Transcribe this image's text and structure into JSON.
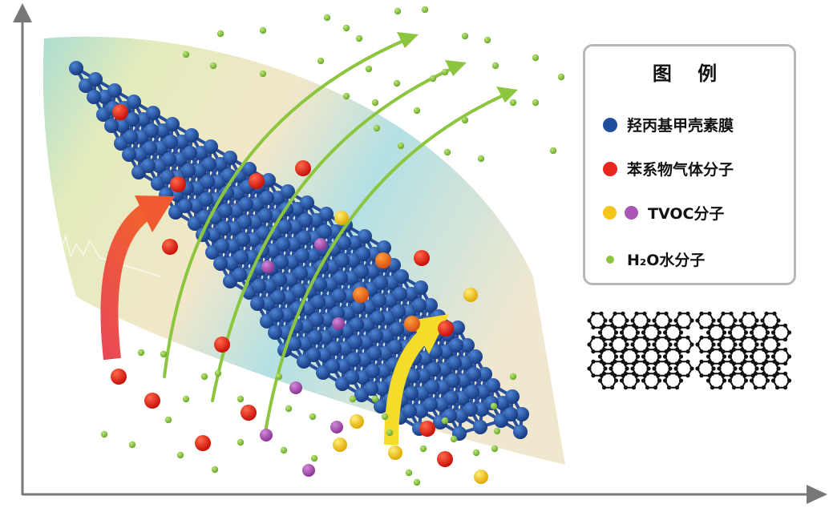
{
  "legend": {
    "title": "图 例",
    "items": [
      {
        "label": "羟丙基甲壳素膜",
        "colors": [
          "#1f4e9e"
        ]
      },
      {
        "label": "苯系物气体分子",
        "colors": [
          "#e8281e"
        ]
      },
      {
        "label": "TVOC分子",
        "colors": [
          "#f5c518",
          "#a855b5"
        ]
      },
      {
        "label": "H₂O水分子",
        "colors": [
          "#8cc63f"
        ]
      }
    ]
  },
  "colors": {
    "membrane_atom": "#1f4e9e",
    "benzene_molecule": "#e8281e",
    "tvoc_yellow": "#f5c518",
    "tvoc_purple": "#a855b5",
    "water_molecule": "#8cc63f",
    "axis": "#777777",
    "red_arrow": "#e84c4c",
    "yellow_arrow": "#f5dc28",
    "green_arrow": "#8cc63f"
  },
  "icons": [
    "axis-arrow-icon",
    "curved-arrow-icon",
    "membrane-lattice-icon",
    "nanotube-icon"
  ]
}
